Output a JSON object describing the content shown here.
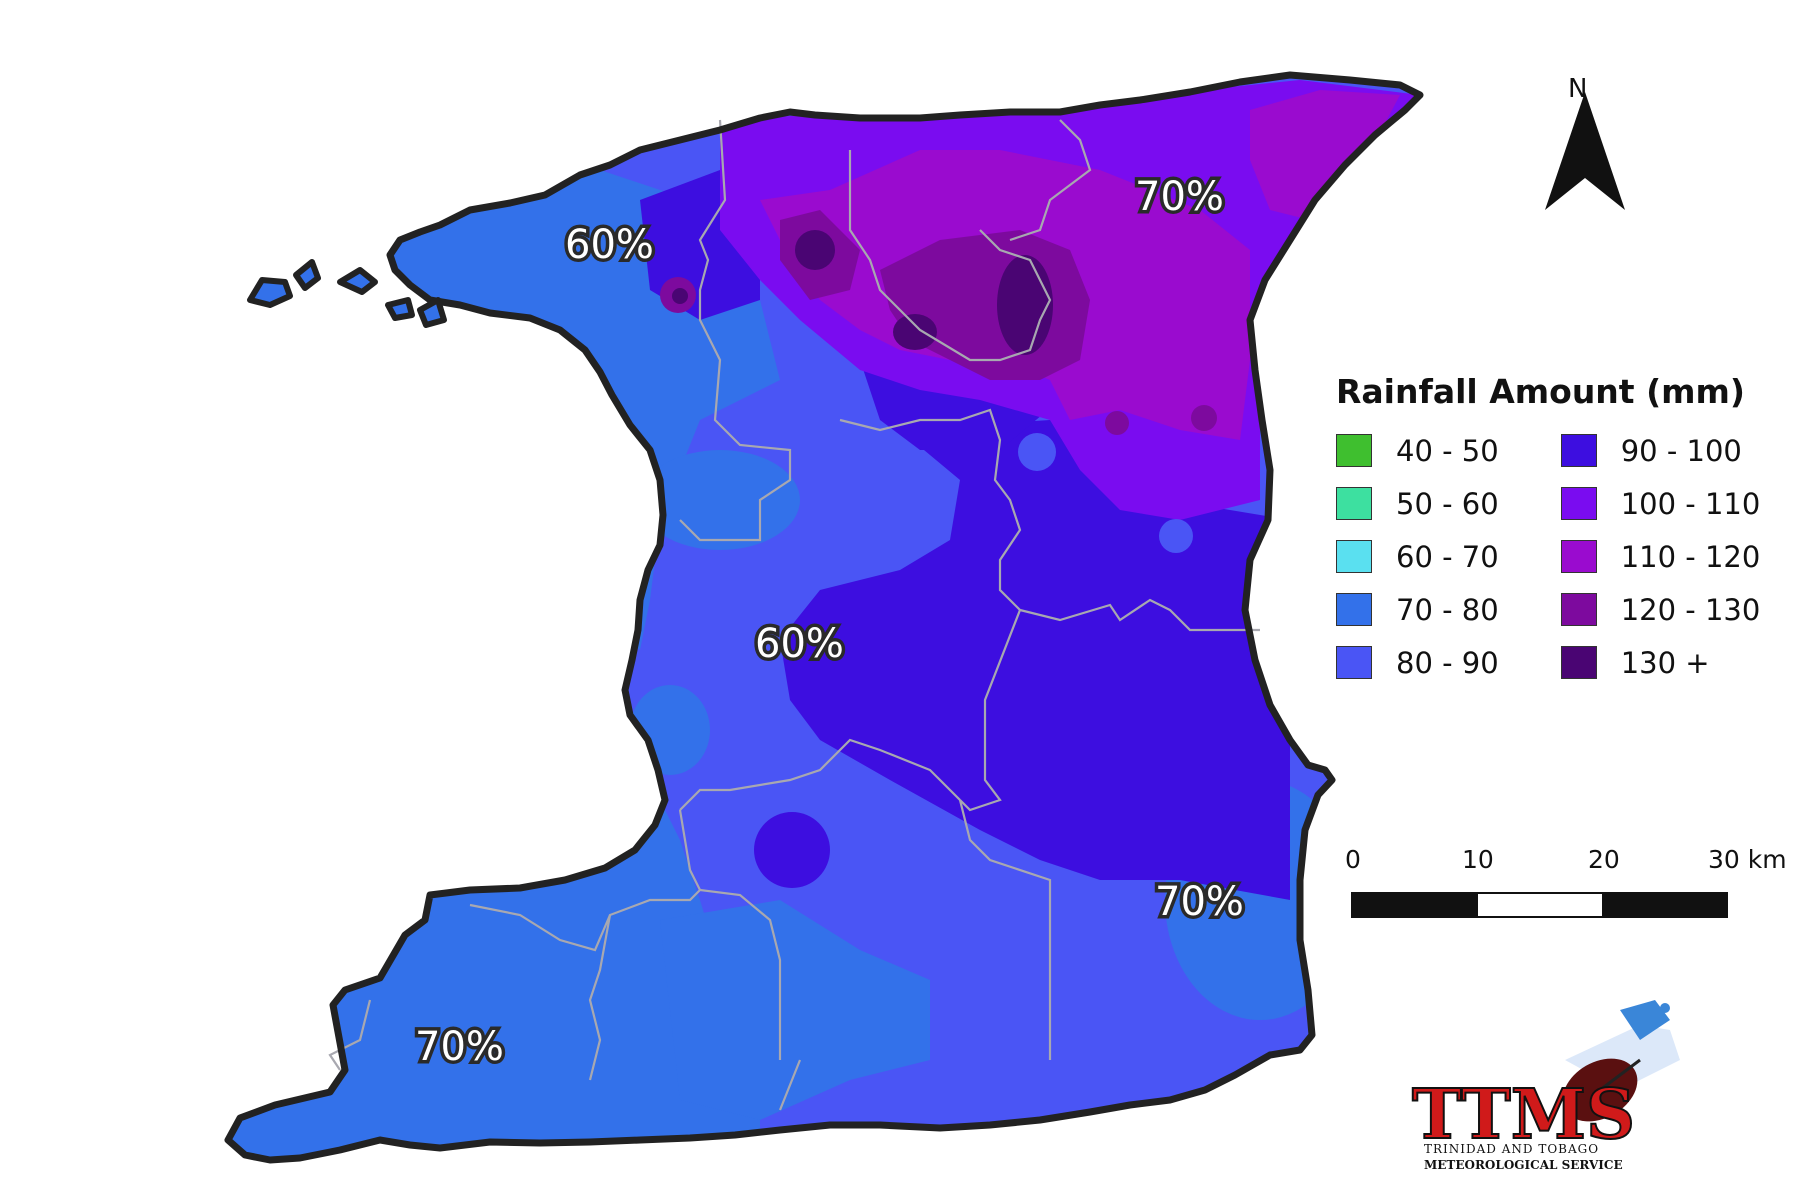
{
  "legend": {
    "title": "Rainfall Amount (mm)",
    "items": [
      {
        "label": "40 - 50",
        "color": "#3fbf2f"
      },
      {
        "label": "50 - 60",
        "color": "#3de0a0"
      },
      {
        "label": "60 - 70",
        "color": "#5ae0f0"
      },
      {
        "label": "70 - 80",
        "color": "#3371ea"
      },
      {
        "label": "80 - 90",
        "color": "#4a55f5"
      },
      {
        "label": "90 - 100",
        "color": "#3d0ee0"
      },
      {
        "label": "100 - 110",
        "color": "#7a0cf0"
      },
      {
        "label": "110 - 120",
        "color": "#9a0bcf"
      },
      {
        "label": "120 - 130",
        "color": "#7d0a9e"
      },
      {
        "label": "130 +",
        "color": "#4a0573"
      }
    ]
  },
  "percent_labels": {
    "nw": "60%",
    "ne": "70%",
    "center": "60%",
    "east": "70%",
    "sw": "70%"
  },
  "north_arrow": {
    "letter": "N"
  },
  "scale_bar": {
    "ticks": [
      "0",
      "10",
      "20",
      "30 km"
    ]
  },
  "logo": {
    "mark": "TTMS",
    "line1": "TRINIDAD AND TOBAGO",
    "line2": "METEOROLOGICAL SERVICE"
  }
}
